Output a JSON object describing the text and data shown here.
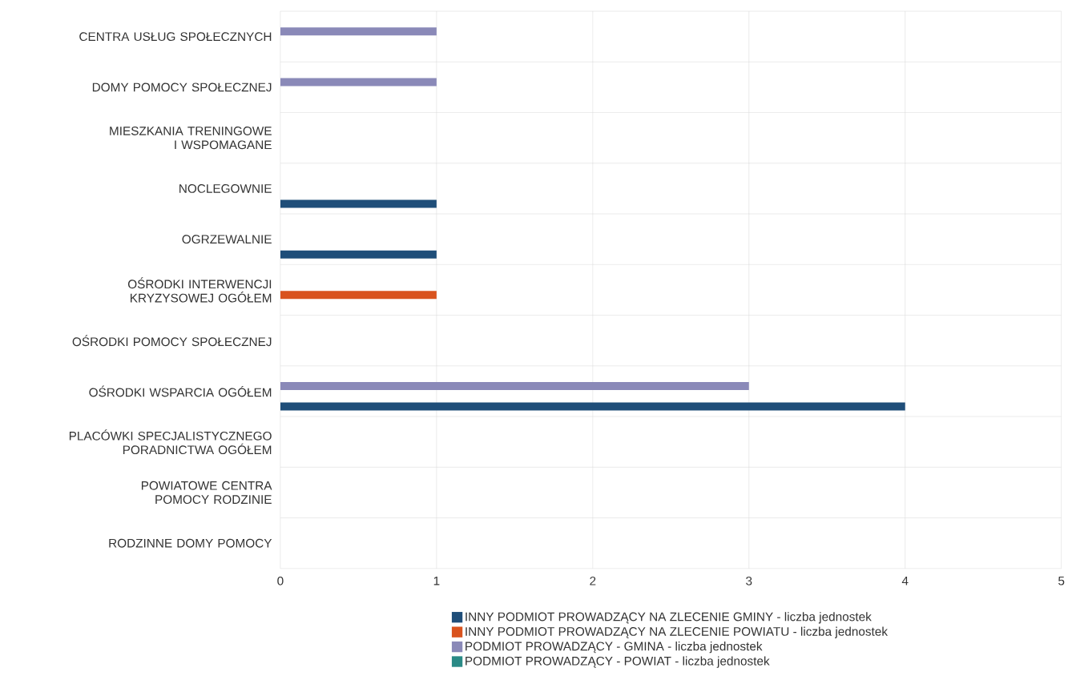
{
  "chart_data": {
    "type": "bar",
    "orientation": "horizontal",
    "categories": [
      "CENTRA USŁUG SPOŁECZNYCH",
      "DOMY POMOCY SPOŁECZNEJ",
      "MIESZKANIA TRENINGOWE I WSPOMAGANE",
      "NOCLEGOWNIE",
      "OGRZEWALNIE",
      "OŚRODKI INTERWENCJI KRYZYSOWEJ OGÓŁEM",
      "OŚRODKI POMOCY SPOŁECZNEJ",
      "OŚRODKI WSPARCIA OGÓŁEM",
      "PLACÓWKI SPECJALISTYCZNEGO PORADNICTWA OGÓŁEM",
      "POWIATOWE CENTRA POMOCY RODZINIE",
      "RODZINNE DOMY POMOCY"
    ],
    "series": [
      {
        "name": "INNY PODMIOT PROWADZĄCY NA ZLECENIE GMINY - liczba jednostek",
        "color": "#1f4e79",
        "values": [
          0,
          0,
          0,
          1,
          1,
          0,
          0,
          4,
          0,
          0,
          0
        ]
      },
      {
        "name": "INNY PODMIOT PROWADZĄCY NA ZLECENIE POWIATU - liczba jednostek",
        "color": "#d9531e",
        "values": [
          0,
          0,
          0,
          0,
          0,
          1,
          0,
          0,
          0,
          0,
          0
        ]
      },
      {
        "name": "PODMIOT PROWADZĄCY - GMINA - liczba jednostek",
        "color": "#8a89b8",
        "values": [
          1,
          1,
          0,
          0,
          0,
          0,
          0,
          3,
          0,
          0,
          0
        ]
      },
      {
        "name": "PODMIOT PROWADZĄCY - POWIAT - liczba jednostek",
        "color": "#2a8a86",
        "values": [
          0,
          0,
          0,
          0,
          0,
          0,
          0,
          0,
          0,
          0,
          0
        ]
      }
    ],
    "xlim": [
      0,
      5
    ],
    "xticks": [
      0,
      1,
      2,
      3,
      4,
      5
    ],
    "grid": true,
    "legend": "bottom"
  }
}
